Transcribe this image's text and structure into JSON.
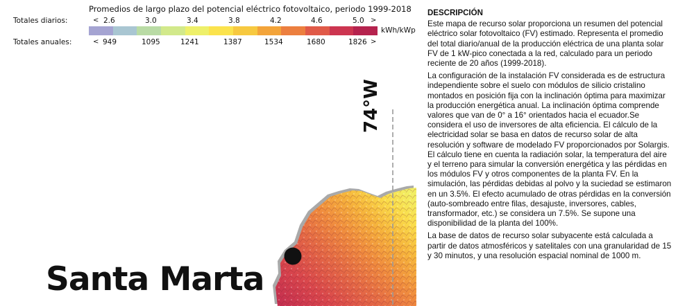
{
  "legend": {
    "title": "Promedios de largo plazo del potencial eléctrico fotovoltaico, periodo 1999-2018",
    "daily_label": "Totales diarios:",
    "annual_label": "Totales anuales:",
    "unit": "kWh/kWp",
    "lt_symbol": "<",
    "gt_symbol": ">",
    "daily_ticks": [
      "2.6",
      "3.0",
      "3.4",
      "3.8",
      "4.2",
      "4.6",
      "5.0"
    ],
    "annual_ticks": [
      "949",
      "1095",
      "1241",
      "1387",
      "1534",
      "1680",
      "1826"
    ],
    "colors": [
      "#a5a4d2",
      "#a9c6d2",
      "#b9dba5",
      "#d2e98b",
      "#eef06a",
      "#fbe34d",
      "#f7c940",
      "#f3a43a",
      "#ec7f3f",
      "#e05a48",
      "#cc3550",
      "#b5234e"
    ]
  },
  "map": {
    "city_name": "Santa Marta",
    "longitude_label": "74°W",
    "meridian_color": "#9a9a9a",
    "terrain_palette": [
      "#c22c50",
      "#d9464c",
      "#e56b45",
      "#f08d3e",
      "#f6b53c",
      "#fadc4a",
      "#f2ee63"
    ],
    "city_marker_color": "#111111"
  },
  "description": {
    "title": "DESCRIPCIÓN",
    "paragraphs": [
      "Este mapa de recurso solar proporciona un resumen del potencial eléctrico solar fotovoltaico (FV) estimado. Representa el promedio del total diario/anual de la producción eléctrica de una planta solar FV de 1 kW-pico conectada a la red, calculado para un periodo reciente de 20 años (1999-2018).",
      "La configuración de la instalación FV considerada es de estructura independiente sobre el suelo con módulos de silicio cristalino montados en posición fija con la inclinación óptima para maximizar la producción energética anual. La inclinación óptima comprende valores que van de 0° a 16° orientados hacia el ecuador.Se considera el uso de inversores de alta eficiencia. El cálculo de la electricidad solar se basa en datos de recurso solar de alta resolución y software de modelado FV proporcionados por Solargis. El cálculo tiene en cuenta la radiación solar, la temperatura del aire y el terreno para simular la conversión energética y las pérdidas en los módulos FV y otros componentes de la planta FV. En la simulación, las pérdidas debidas al polvo y la suciedad se estimaron en un 3.5%. El efecto acumulado de otras pérdidas en la conversión (auto-sombreado entre filas, desajuste, inversores, cables, transformador, etc.) se considera un 7.5%. Se supone una disponibilidad de la planta del 100%.",
      "La base de datos de recurso solar subyacente está calculada a partir de datos atmosféricos y satelitales con una granularidad de 15 y 30 minutos, y una resolución espacial nominal de  1000 m."
    ]
  }
}
